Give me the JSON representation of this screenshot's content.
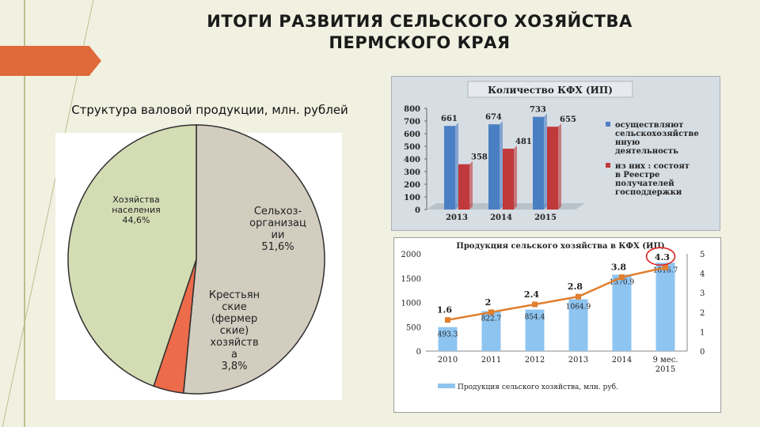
{
  "title": {
    "line1": "ИТОГИ РАЗВИТИЯ СЕЛЬСКОГО ХОЗЯЙСТВА",
    "line2": "ПЕРМСКОГО КРАЯ"
  },
  "colors": {
    "accent": "#e06a3a",
    "pie_households": "#d4dcb4",
    "pie_agrorg": "#d2cdbf",
    "pie_farms": "#ec6b4a",
    "bar_blue": "#4b7fc4",
    "bar_red": "#c0393b",
    "line_orange": "#e07f2f",
    "column_blue": "#8ec4f0"
  },
  "chart_data": [
    {
      "type": "pie",
      "title": "Структура валовой продукции, млн. рублей",
      "slices": [
        {
          "label": "Сельхоз-\nорганизац\nии\n51,6%",
          "value": 51.6
        },
        {
          "label": "Крестьян\nские\n(фермер\nские)\nхозяйств\nа\n3,8%",
          "value": 3.8
        },
        {
          "label": "Хозяйства\nнаселения\n44,6%",
          "value": 44.6
        }
      ]
    },
    {
      "type": "bar",
      "title": "Количество КФХ (ИП)",
      "categories": [
        "2013",
        "2014",
        "2015"
      ],
      "ylim": [
        0,
        800
      ],
      "yticks": [
        "0",
        "100",
        "200",
        "300",
        "400",
        "500",
        "600",
        "700",
        "800"
      ],
      "series": [
        {
          "name": "осуществляют сельскохозяйстве нную деятельность",
          "values": [
            661,
            674,
            733
          ]
        },
        {
          "name": "из них : состоят в Реестре получателей господдержки",
          "values": [
            358,
            481,
            655
          ]
        }
      ]
    },
    {
      "type": "bar",
      "title": "Продукция сельского хозяйства в КФХ (ИП)",
      "categories": [
        "2010",
        "2011",
        "2012",
        "2013",
        "2014",
        "9 мес. 2015"
      ],
      "ylim": [
        0,
        2000
      ],
      "yticks": [
        "0",
        "500",
        "1000",
        "1500",
        "2000"
      ],
      "y2lim": [
        0,
        5
      ],
      "y2ticks": [
        "0",
        "1",
        "2",
        "3",
        "4",
        "5"
      ],
      "series": [
        {
          "name": "Продукция сельского хозяйства, млн. руб.",
          "type": "bar",
          "values": [
            493.3,
            822.7,
            854.4,
            1064.9,
            1570.9,
            1816.7
          ],
          "labels": [
            "493.3",
            "822.7",
            "854.4",
            "1064.9",
            "1570.9",
            "1816.7"
          ]
        },
        {
          "type": "line",
          "axis": "secondary",
          "values": [
            1.6,
            2.0,
            2.4,
            2.8,
            3.8,
            4.3
          ],
          "labels": [
            "1.6",
            "2",
            "2.4",
            "2.8",
            "3.8",
            "4.3"
          ]
        }
      ]
    }
  ]
}
